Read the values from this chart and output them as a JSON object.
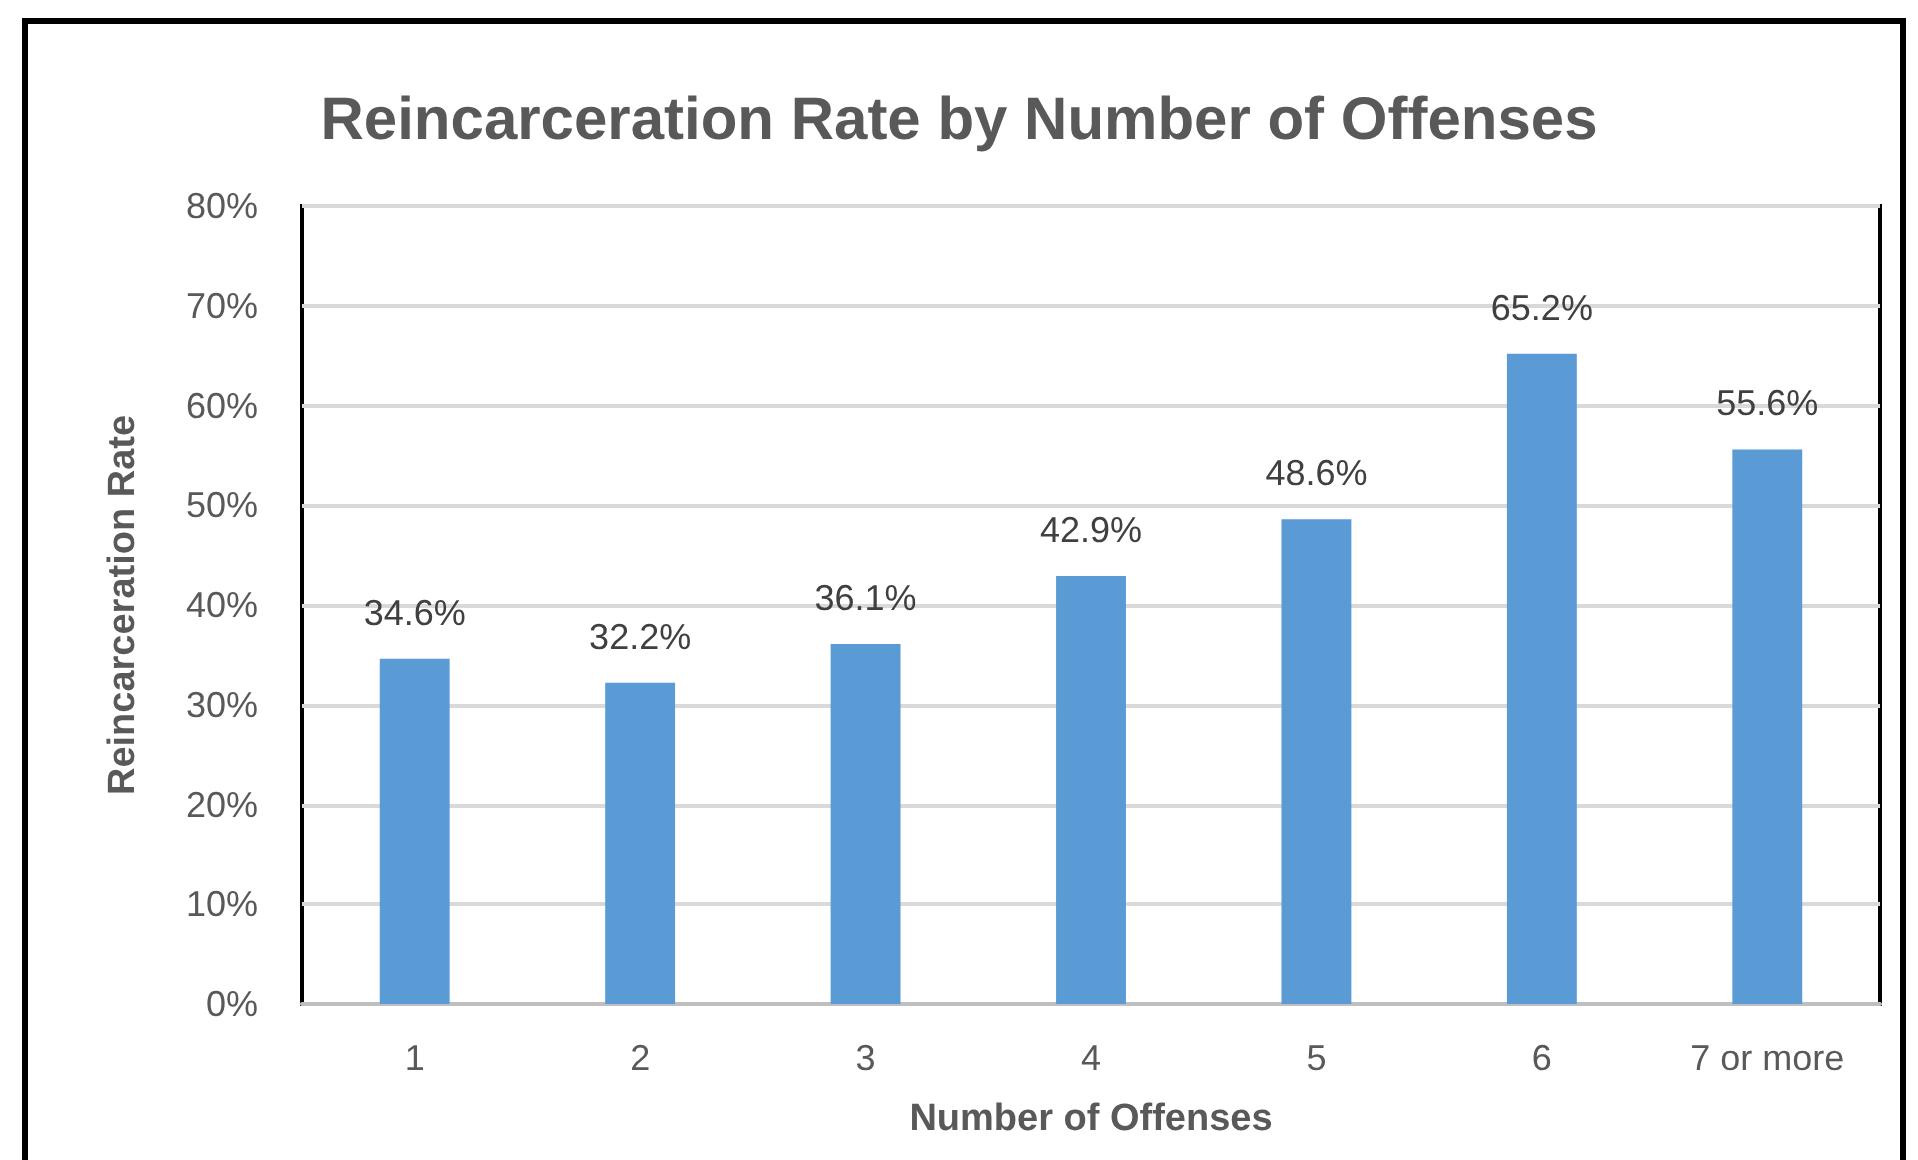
{
  "chart_data": {
    "type": "bar",
    "title": "Reincarceration Rate by Number of Offenses",
    "xlabel": "Number of Offenses",
    "ylabel": "Reincarceration Rate",
    "categories": [
      "1",
      "2",
      "3",
      "4",
      "5",
      "6",
      "7 or more"
    ],
    "values": [
      34.6,
      32.2,
      36.1,
      42.9,
      48.6,
      65.2,
      55.6
    ],
    "value_labels": [
      "34.6%",
      "32.2%",
      "36.1%",
      "42.9%",
      "48.6%",
      "65.2%",
      "55.6%"
    ],
    "color": "#5b9bd5",
    "ylim": [
      0,
      80
    ],
    "yticks": [
      {
        "value": 0,
        "label": "0%"
      },
      {
        "value": 10,
        "label": "10%"
      },
      {
        "value": 20,
        "label": "20%"
      },
      {
        "value": 30,
        "label": "30%"
      },
      {
        "value": 40,
        "label": "40%"
      },
      {
        "value": 50,
        "label": "50%"
      },
      {
        "value": 60,
        "label": "60%"
      },
      {
        "value": 70,
        "label": "70%"
      },
      {
        "value": 80,
        "label": "80%"
      }
    ],
    "grid": "y"
  }
}
